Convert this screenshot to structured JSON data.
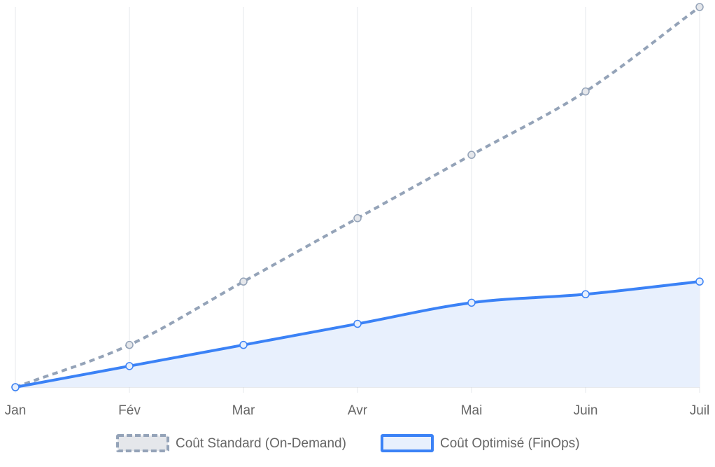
{
  "chart_data": {
    "type": "line",
    "title": "",
    "xlabel": "",
    "ylabel": "",
    "categories": [
      "Jan",
      "Fév",
      "Mar",
      "Avr",
      "Mai",
      "Juin",
      "Juil"
    ],
    "ylim": [
      0,
      90
    ],
    "grid": {
      "vertical": true,
      "horizontal": false
    },
    "legend_position": "bottom-center",
    "series": [
      {
        "name": "Coût Standard (On-Demand)",
        "values": [
          0,
          10,
          25,
          40,
          55,
          70,
          90
        ],
        "color": "#94a3b8",
        "style": "dashed",
        "fill": false
      },
      {
        "name": "Coût Optimisé (FinOps)",
        "values": [
          0,
          5,
          10,
          15,
          20,
          22,
          25
        ],
        "color": "#3b82f6",
        "style": "solid",
        "fill": true,
        "fill_color": "#e8f0fd"
      }
    ]
  },
  "colors": {
    "grid": "#e5e7eb",
    "axis": "#d1d5db",
    "tick_text": "#666666",
    "point_fill_standard": "#e5e7eb",
    "point_fill_optimized": "#e8f0fd",
    "legend_standard_fill": "#e5e7eb"
  }
}
